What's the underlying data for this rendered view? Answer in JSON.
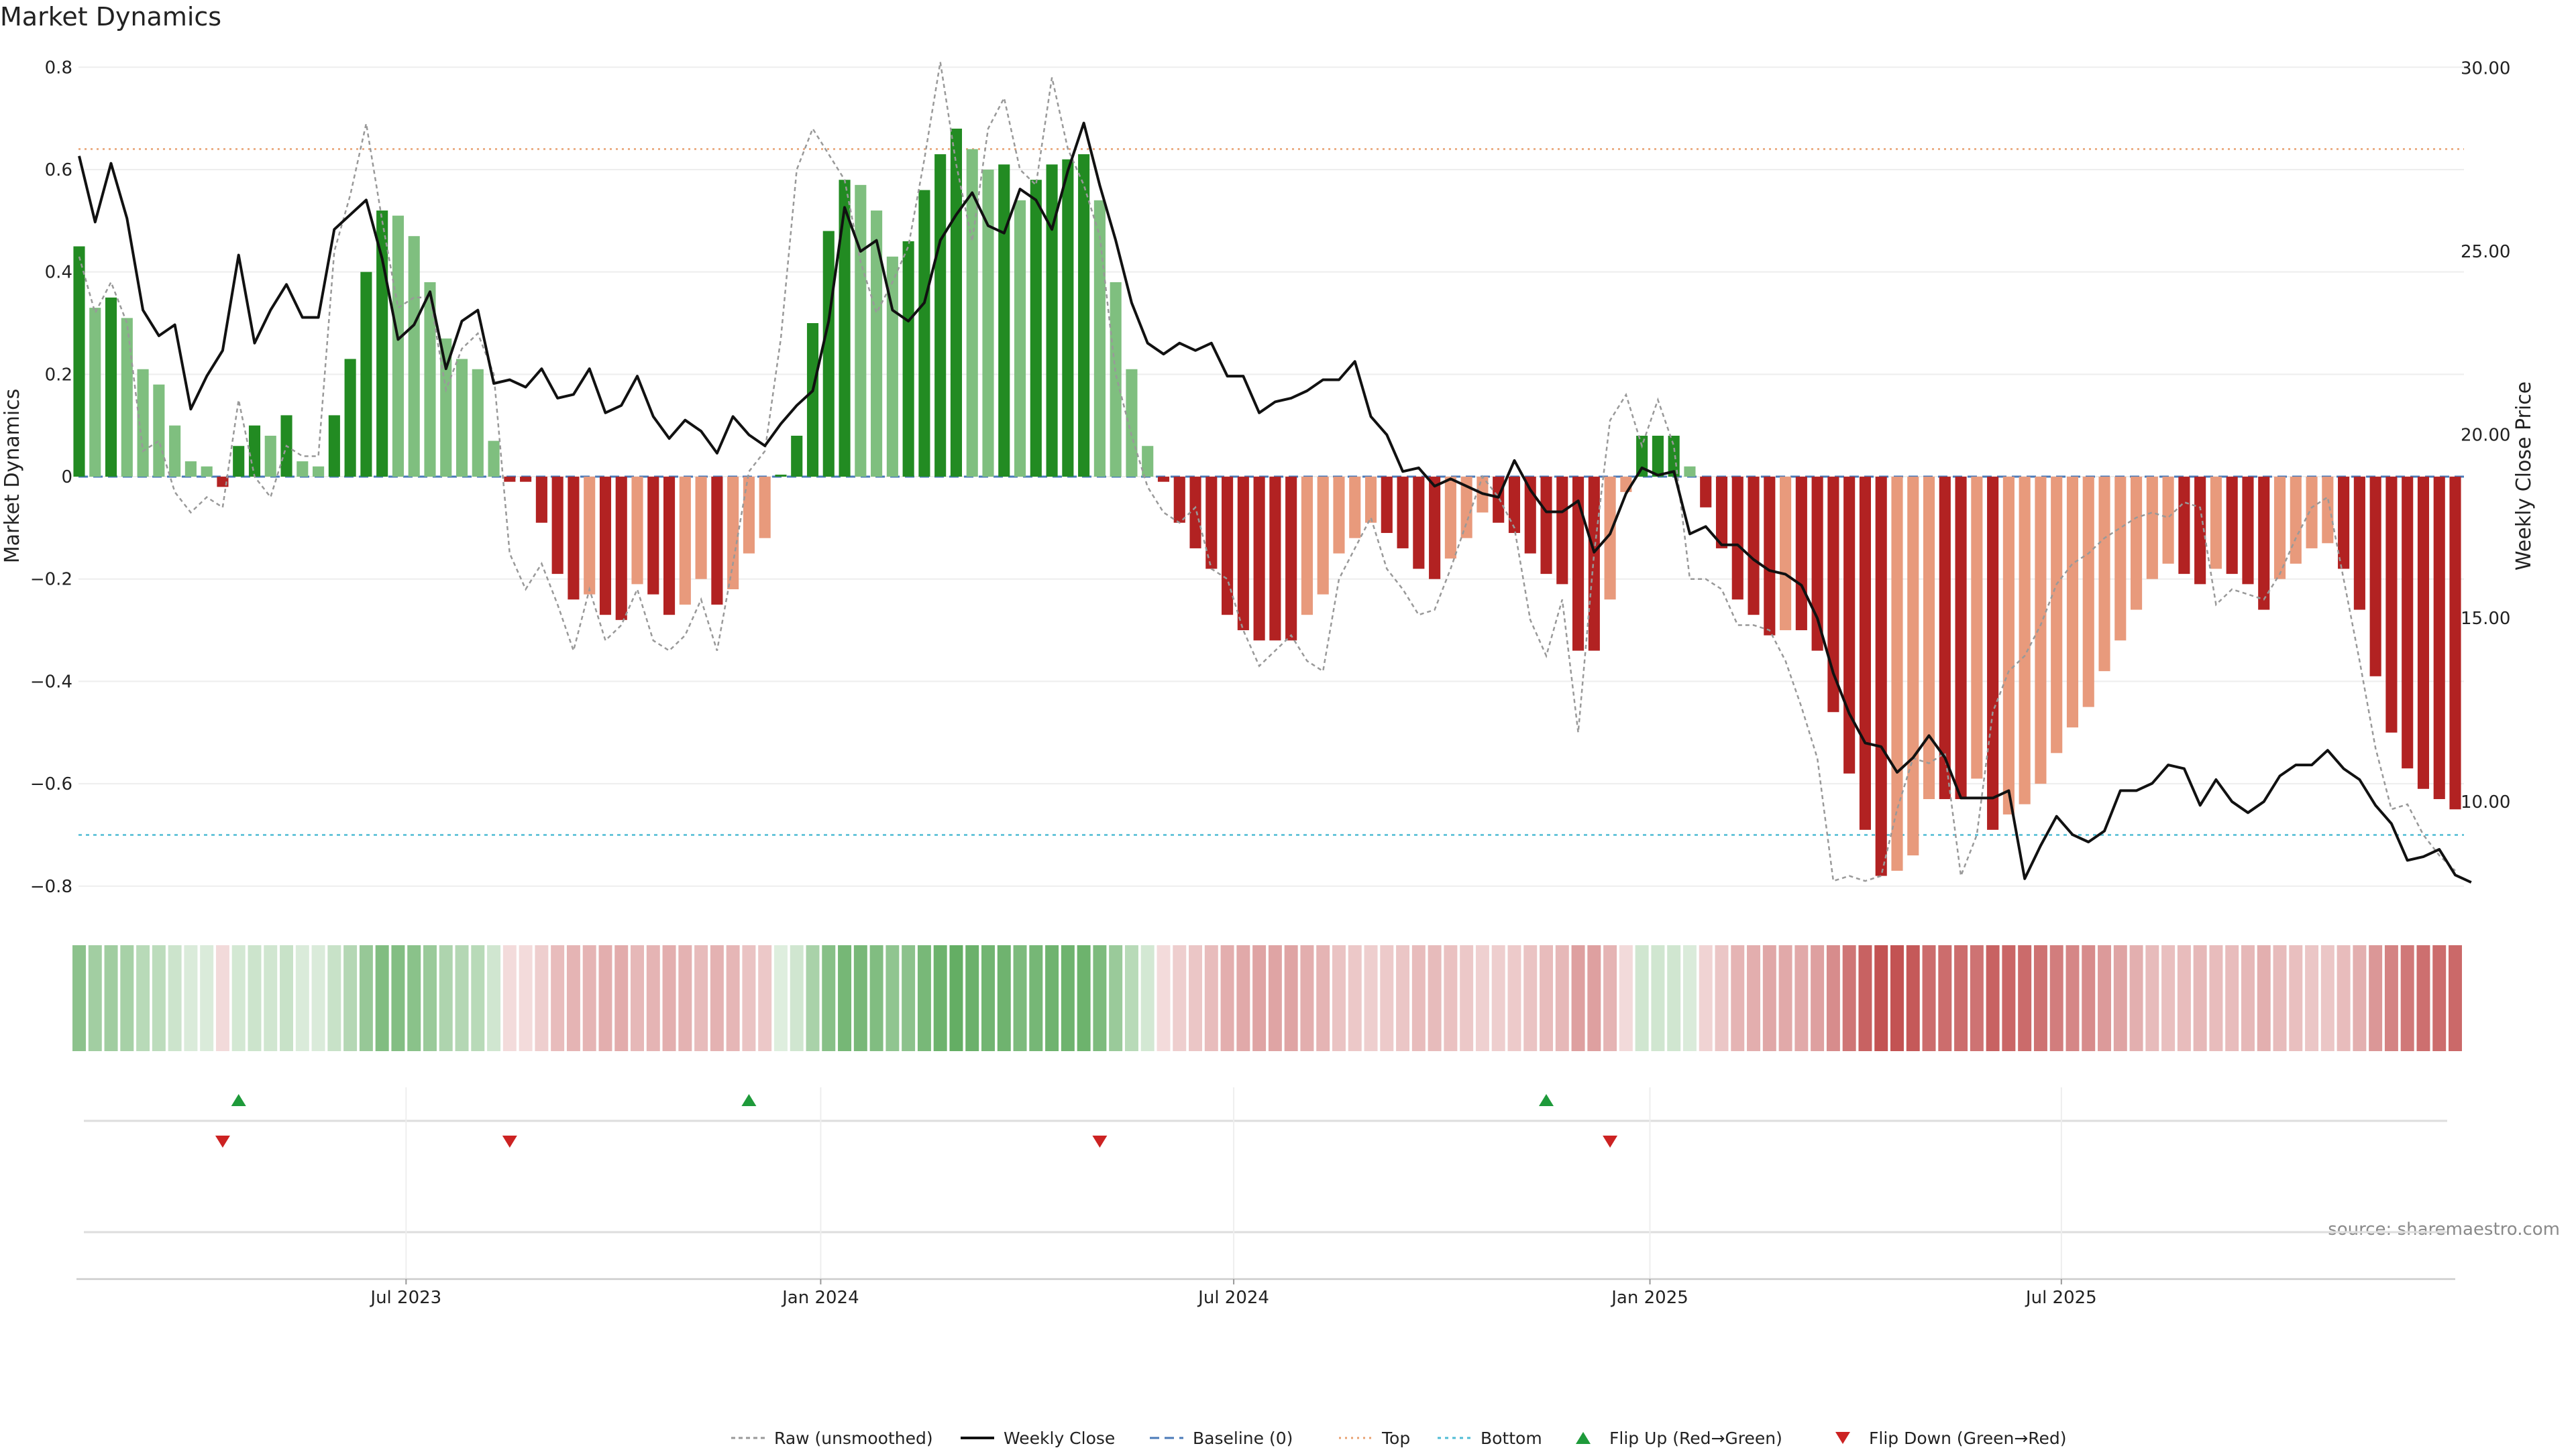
{
  "chart_data": {
    "type": "bar",
    "title": "Market Dynamics",
    "ylabel": "Market Dynamics",
    "ylabel_right": "Weekly Close Price",
    "source": "source: sharemaestro.com",
    "ylim": [
      -0.85,
      0.82
    ],
    "yticks": [
      0.8,
      0.6,
      0.4,
      0.2,
      0,
      -0.2,
      -0.4,
      -0.6,
      -0.8
    ],
    "ytick_labels": [
      "0.8",
      "0.6",
      "0.4",
      "0.2",
      "0",
      "−0.2",
      "−0.4",
      "−0.6",
      "−0.8"
    ],
    "ylim_right": [
      7.0,
      30.3
    ],
    "yticks_right": [
      30,
      25,
      20,
      15,
      10
    ],
    "ytick_labels_right": [
      "30.00",
      "25.00",
      "20.00",
      "15.00",
      "10.00"
    ],
    "xticks": [
      {
        "label": "Jul 2023",
        "week": 20.5
      },
      {
        "label": "Jan 2024",
        "week": 46.5
      },
      {
        "label": "Jul 2024",
        "week": 72.4
      },
      {
        "label": "Jan 2025",
        "week": 98.5
      },
      {
        "label": "Jul 2025",
        "week": 124.3
      }
    ],
    "top_level": 0.64,
    "bottom_level": -0.7,
    "baseline": 0,
    "grid": true,
    "legend_position": "bottom-center",
    "colors": {
      "bar_strong_up": "#228b22",
      "bar_weak_up": "#7fbf7f",
      "bar_strong_down": "#b22222",
      "bar_weak_down": "#e89a7c",
      "close_line": "#111111",
      "raw_line": "#999999",
      "baseline": "#4a7ab8",
      "top": "#e8a070",
      "bottom": "#4fbcd4",
      "flip_up": "#1e9a3a",
      "flip_down": "#cc2222",
      "grid": "#eeeeee"
    },
    "series": [
      {
        "name": "Market Dynamics",
        "values": [
          0.45,
          0.33,
          0.35,
          0.31,
          0.21,
          0.18,
          0.1,
          0.03,
          0.02,
          -0.02,
          0.06,
          0.1,
          0.08,
          0.12,
          0.03,
          0.02,
          0.12,
          0.23,
          0.4,
          0.52,
          0.51,
          0.47,
          0.38,
          0.27,
          0.23,
          0.21,
          0.07,
          -0.01,
          -0.01,
          -0.09,
          -0.19,
          -0.24,
          -0.23,
          -0.27,
          -0.28,
          -0.21,
          -0.23,
          -0.27,
          -0.25,
          -0.2,
          -0.25,
          -0.22,
          -0.15,
          -0.12,
          0.0,
          0.08,
          0.3,
          0.48,
          0.58,
          0.57,
          0.52,
          0.43,
          0.46,
          0.56,
          0.63,
          0.68,
          0.64,
          0.6,
          0.61,
          0.54,
          0.58,
          0.61,
          0.62,
          0.63,
          0.54,
          0.38,
          0.21,
          0.06,
          -0.01,
          -0.09,
          -0.14,
          -0.18,
          -0.27,
          -0.3,
          -0.32,
          -0.32,
          -0.32,
          -0.27,
          -0.23,
          -0.15,
          -0.12,
          -0.09,
          -0.11,
          -0.14,
          -0.18,
          -0.2,
          -0.16,
          -0.12,
          -0.07,
          -0.09,
          -0.11,
          -0.15,
          -0.19,
          -0.21,
          -0.34,
          -0.34,
          -0.24,
          -0.03,
          0.08,
          0.08,
          0.08,
          0.02,
          -0.06,
          -0.14,
          -0.24,
          -0.27,
          -0.31,
          -0.3,
          -0.3,
          -0.34,
          -0.46,
          -0.58,
          -0.69,
          -0.78,
          -0.77,
          -0.74,
          -0.63,
          -0.63,
          -0.63,
          -0.59,
          -0.69,
          -0.66,
          -0.64,
          -0.6,
          -0.54,
          -0.49,
          -0.45,
          -0.38,
          -0.32,
          -0.26,
          -0.2,
          -0.17,
          -0.19,
          -0.21,
          -0.18,
          -0.19,
          -0.21,
          -0.26,
          -0.2,
          -0.17,
          -0.14,
          -0.13,
          -0.18,
          -0.26,
          -0.39,
          -0.5,
          -0.57,
          -0.61,
          -0.63,
          -0.65
        ]
      },
      {
        "name": "Weekly Close",
        "values": [
          27.6,
          25.8,
          27.4,
          25.9,
          23.4,
          22.7,
          23.0,
          20.7,
          21.6,
          22.3,
          24.9,
          22.5,
          23.4,
          24.1,
          23.2,
          23.2,
          25.6,
          26.0,
          26.4,
          24.8,
          22.6,
          23.0,
          23.9,
          21.8,
          23.1,
          23.4,
          21.4,
          21.5,
          21.3,
          21.8,
          21.0,
          21.1,
          21.8,
          20.6,
          20.8,
          21.6,
          20.5,
          19.9,
          20.4,
          20.1,
          19.5,
          20.5,
          20.0,
          19.7,
          20.3,
          20.8,
          21.2,
          23.1,
          26.2,
          25.0,
          25.3,
          23.4,
          23.1,
          23.6,
          25.3,
          26.0,
          26.6,
          25.7,
          25.5,
          26.7,
          26.4,
          25.6,
          27.2,
          28.5,
          26.8,
          25.3,
          23.6,
          22.5,
          22.2,
          22.5,
          22.3,
          22.5,
          21.6,
          21.6,
          20.6,
          20.9,
          21.0,
          21.2,
          21.5,
          21.5,
          22.0,
          20.5,
          20.0,
          19.0,
          19.1,
          18.6,
          18.8,
          18.6,
          18.4,
          18.3,
          19.3,
          18.5,
          17.9,
          17.9,
          18.2,
          16.8,
          17.3,
          18.4,
          19.1,
          18.9,
          19.0,
          17.3,
          17.5,
          17.0,
          17.0,
          16.6,
          16.3,
          16.2,
          15.9,
          15.0,
          13.5,
          12.4,
          11.6,
          11.5,
          10.8,
          11.2,
          11.8,
          11.2,
          10.1,
          10.1,
          10.1,
          10.3,
          7.9,
          8.8,
          9.6,
          9.1,
          8.9,
          9.2,
          10.3,
          10.3,
          10.5,
          11.0,
          10.9,
          9.9,
          10.6,
          10.0,
          9.7,
          10.0,
          10.7,
          11.0,
          11.0,
          11.4,
          10.9,
          10.6,
          9.9,
          9.4,
          8.4,
          8.5,
          8.7,
          8.0,
          7.8
        ]
      },
      {
        "name": "Raw (unsmoothed)",
        "values": [
          0.43,
          0.32,
          0.38,
          0.3,
          0.05,
          0.07,
          -0.03,
          -0.07,
          -0.04,
          -0.06,
          0.15,
          0.0,
          -0.04,
          0.06,
          0.04,
          0.04,
          0.44,
          0.55,
          0.69,
          0.5,
          0.33,
          0.35,
          0.35,
          0.17,
          0.25,
          0.28,
          0.2,
          -0.15,
          -0.22,
          -0.17,
          -0.25,
          -0.34,
          -0.22,
          -0.32,
          -0.29,
          -0.22,
          -0.32,
          -0.34,
          -0.31,
          -0.24,
          -0.34,
          -0.17,
          0.01,
          0.05,
          0.27,
          0.6,
          0.68,
          0.63,
          0.58,
          0.42,
          0.32,
          0.38,
          0.45,
          0.62,
          0.81,
          0.61,
          0.46,
          0.68,
          0.74,
          0.6,
          0.57,
          0.78,
          0.64,
          0.57,
          0.47,
          0.2,
          0.08,
          -0.02,
          -0.07,
          -0.09,
          -0.06,
          -0.18,
          -0.2,
          -0.3,
          -0.37,
          -0.34,
          -0.31,
          -0.36,
          -0.38,
          -0.2,
          -0.14,
          -0.08,
          -0.18,
          -0.22,
          -0.27,
          -0.26,
          -0.18,
          -0.09,
          0.0,
          -0.04,
          -0.1,
          -0.28,
          -0.35,
          -0.24,
          -0.5,
          -0.15,
          0.11,
          0.16,
          0.06,
          0.15,
          0.06,
          -0.2,
          -0.2,
          -0.22,
          -0.29,
          -0.29,
          -0.3,
          -0.36,
          -0.45,
          -0.55,
          -0.79,
          -0.78,
          -0.79,
          -0.78,
          -0.65,
          -0.55,
          -0.56,
          -0.54,
          -0.78,
          -0.7,
          -0.46,
          -0.38,
          -0.35,
          -0.29,
          -0.21,
          -0.17,
          -0.15,
          -0.12,
          -0.1,
          -0.08,
          -0.07,
          -0.08,
          -0.05,
          -0.06,
          -0.25,
          -0.22,
          -0.23,
          -0.24,
          -0.19,
          -0.12,
          -0.06,
          -0.04,
          -0.2,
          -0.36,
          -0.53,
          -0.65,
          -0.64,
          -0.7,
          -0.74,
          -0.77
        ]
      }
    ],
    "flip_up_weeks": [
      10,
      42,
      92
    ],
    "flip_down_weeks": [
      9,
      27,
      64,
      96
    ],
    "legend": [
      {
        "key": "raw",
        "label": "Raw (unsmoothed)"
      },
      {
        "key": "close",
        "label": "Weekly Close"
      },
      {
        "key": "baseline",
        "label": "Baseline (0)"
      },
      {
        "key": "top",
        "label": "Top"
      },
      {
        "key": "bottom",
        "label": "Bottom"
      },
      {
        "key": "flip_up",
        "label": "Flip Up (Red→Green)"
      },
      {
        "key": "flip_down",
        "label": "Flip Down (Green→Red)"
      }
    ]
  }
}
